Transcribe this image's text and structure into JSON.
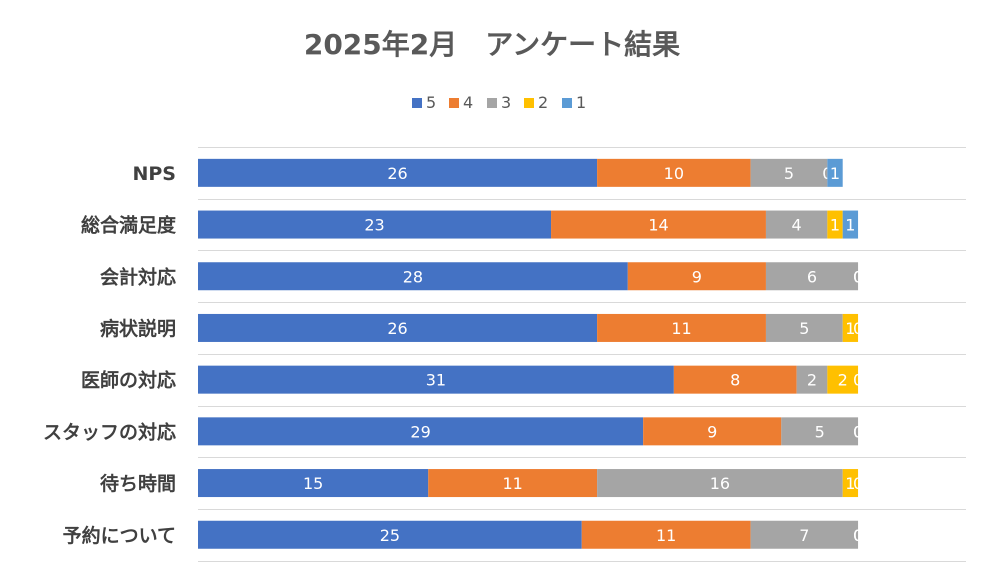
{
  "chart_data": {
    "type": "bar",
    "orientation": "horizontal",
    "stacked": true,
    "title": "2025年2月　アンケート結果",
    "categories": [
      "NPS",
      "総合満足度",
      "会計対応",
      "病状説明",
      "医師の対応",
      "スタッフの対応",
      "待ち時間",
      "予約について"
    ],
    "series": [
      {
        "name": "5",
        "color": "#4472C4",
        "values": [
          26,
          23,
          28,
          26,
          31,
          29,
          15,
          25
        ]
      },
      {
        "name": "4",
        "color": "#ED7D31",
        "values": [
          10,
          14,
          9,
          11,
          8,
          9,
          11,
          11
        ]
      },
      {
        "name": "3",
        "color": "#A5A5A5",
        "values": [
          5,
          4,
          6,
          5,
          2,
          5,
          16,
          7
        ]
      },
      {
        "name": "2",
        "color": "#FFC000",
        "values": [
          0,
          1,
          0,
          1,
          2,
          0,
          1,
          0
        ]
      },
      {
        "name": "1",
        "color": "#5B9BD5",
        "values": [
          1,
          1,
          0,
          0,
          0,
          0,
          0,
          0
        ]
      }
    ],
    "legend_position": "top",
    "xlim": [
      0,
      50
    ],
    "grid": true
  }
}
